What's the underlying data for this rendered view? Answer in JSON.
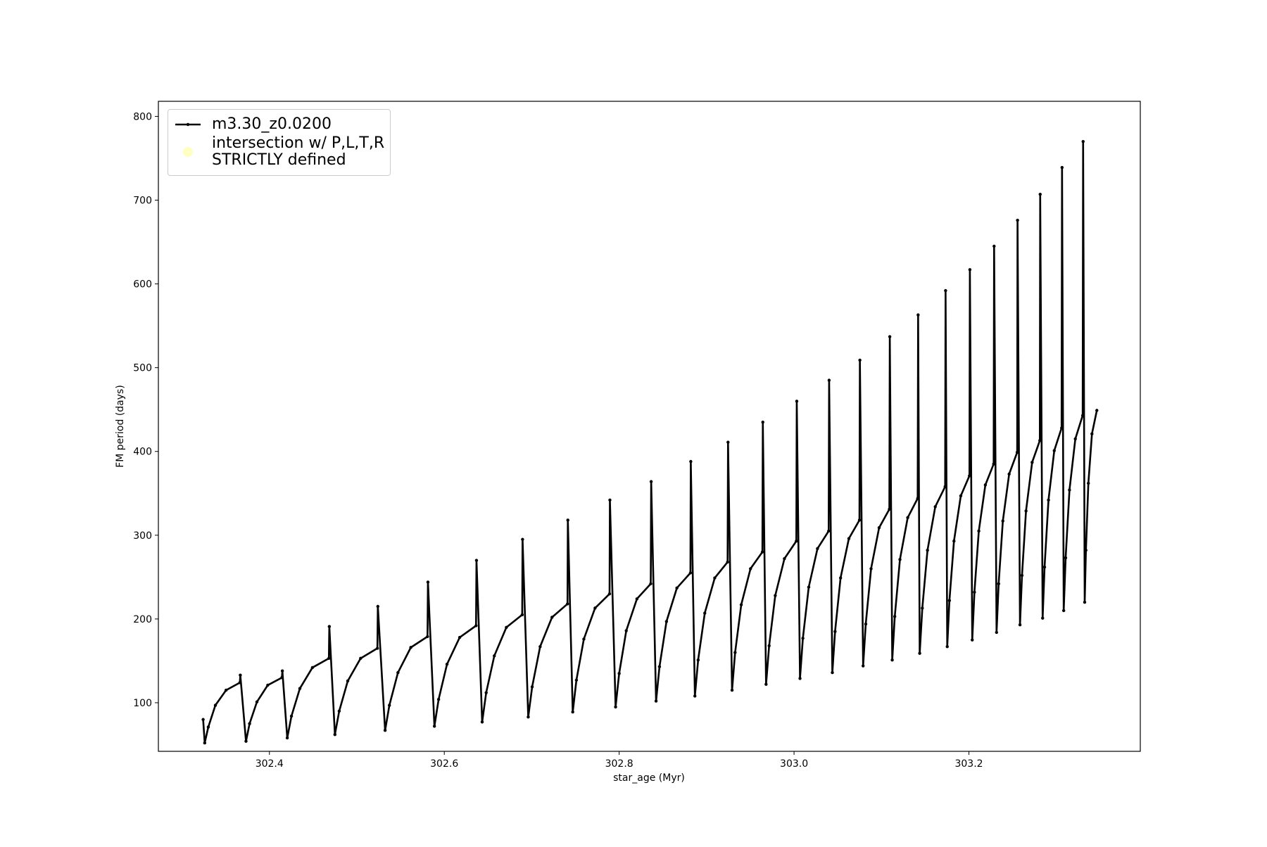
{
  "chart_data": {
    "type": "line",
    "xlabel": "star_age (Myr)",
    "ylabel": "FM period (days)",
    "xlim": [
      302.273,
      303.396
    ],
    "ylim": [
      42,
      818
    ],
    "xticks": [
      302.4,
      302.6,
      302.8,
      {
        "value": 303,
        "label": "303.0"
      },
      303.2
    ],
    "yticks": [
      100,
      200,
      300,
      400,
      500,
      600,
      700,
      800
    ],
    "legend": "upper left",
    "series": [
      {
        "name": "m3.30_z0.0200",
        "color": "#000000",
        "style": "line",
        "x": [
          302.3242,
          302.326,
          302.3301,
          302.3382,
          302.3504,
          302.3662,
          302.3667,
          302.3732,
          302.3773,
          302.3857,
          302.3981,
          302.4143,
          302.4148,
          302.4204,
          302.4252,
          302.4348,
          302.4492,
          302.468,
          302.4685,
          302.4749,
          302.4798,
          302.4896,
          302.5043,
          302.5235,
          302.524,
          302.5323,
          302.5372,
          302.547,
          302.5617,
          302.5808,
          302.5813,
          302.5887,
          302.5935,
          302.6031,
          302.6176,
          302.6363,
          302.6368,
          302.6433,
          302.6479,
          302.6572,
          302.671,
          302.6891,
          302.6895,
          302.696,
          302.7005,
          302.7096,
          302.7232,
          302.7409,
          302.7413,
          302.7469,
          302.7511,
          302.7596,
          302.7724,
          302.789,
          302.7894,
          302.7959,
          302.8,
          302.8081,
          302.8203,
          302.8361,
          302.8366,
          302.8422,
          302.8461,
          302.8541,
          302.866,
          302.8815,
          302.8819,
          302.8866,
          302.8903,
          302.8979,
          302.9093,
          302.924,
          302.9245,
          302.9291,
          302.9326,
          302.9396,
          302.9502,
          302.9638,
          302.9643,
          302.968,
          302.9715,
          302.9785,
          302.989,
          303.0026,
          303.0031,
          303.0068,
          303.0101,
          303.0168,
          303.0268,
          303.0396,
          303.0401,
          303.0438,
          303.0469,
          303.0532,
          303.0627,
          303.0748,
          303.0753,
          303.079,
          303.082,
          303.0881,
          303.0973,
          303.109,
          303.1095,
          303.1123,
          303.1152,
          303.1211,
          303.13,
          303.1414,
          303.1419,
          303.1437,
          303.1467,
          303.1526,
          303.1615,
          303.1728,
          303.1733,
          303.1752,
          303.1777,
          303.1829,
          303.1907,
          303.2006,
          303.2011,
          303.2038,
          303.2063,
          303.2113,
          303.2188,
          303.2283,
          303.2288,
          303.2316,
          303.234,
          303.2388,
          303.246,
          303.2552,
          303.2556,
          303.2584,
          303.2607,
          303.2653,
          303.2723,
          303.2811,
          303.2815,
          303.2843,
          303.2865,
          303.291,
          303.2976,
          303.306,
          303.3065,
          303.3084,
          303.3106,
          303.315,
          303.3217,
          303.3301,
          303.3306,
          303.3324,
          303.3338,
          303.3366,
          303.3407,
          303.3463
        ],
        "values": [
          80,
          52,
          71,
          97,
          115,
          124,
          133,
          54,
          75,
          101,
          121,
          130,
          138,
          58,
          84,
          117,
          142,
          153,
          191,
          62,
          90,
          126,
          153,
          165,
          215,
          67,
          97,
          136,
          166,
          179,
          244,
          72,
          104,
          146,
          178,
          192,
          270,
          77,
          112,
          156,
          190,
          205,
          295,
          83,
          119,
          167,
          202,
          218,
          318,
          89,
          127,
          176,
          213,
          230,
          342,
          95,
          135,
          186,
          224,
          242,
          364,
          102,
          143,
          197,
          237,
          255,
          388,
          108,
          151,
          207,
          249,
          268,
          411,
          115,
          160,
          217,
          260,
          280,
          435,
          122,
          168,
          228,
          272,
          293,
          460,
          129,
          177,
          238,
          284,
          305,
          485,
          136,
          185,
          249,
          296,
          318,
          509,
          144,
          194,
          260,
          309,
          331,
          537,
          151,
          203,
          271,
          321,
          344,
          563,
          159,
          213,
          282,
          334,
          358,
          592,
          167,
          222,
          293,
          347,
          371,
          617,
          175,
          232,
          305,
          360,
          385,
          645,
          184,
          242,
          317,
          373,
          399,
          676,
          193,
          252,
          329,
          387,
          413,
          707,
          201,
          262,
          342,
          401,
          428,
          739,
          210,
          273,
          354,
          415,
          443,
          770,
          220,
          282,
          362,
          421,
          449
        ]
      },
      {
        "name": "intersection w/ P,L,T,R\nSTRICTLY defined",
        "color": "#ffff99",
        "style": "scatter",
        "x": [],
        "values": []
      }
    ]
  }
}
